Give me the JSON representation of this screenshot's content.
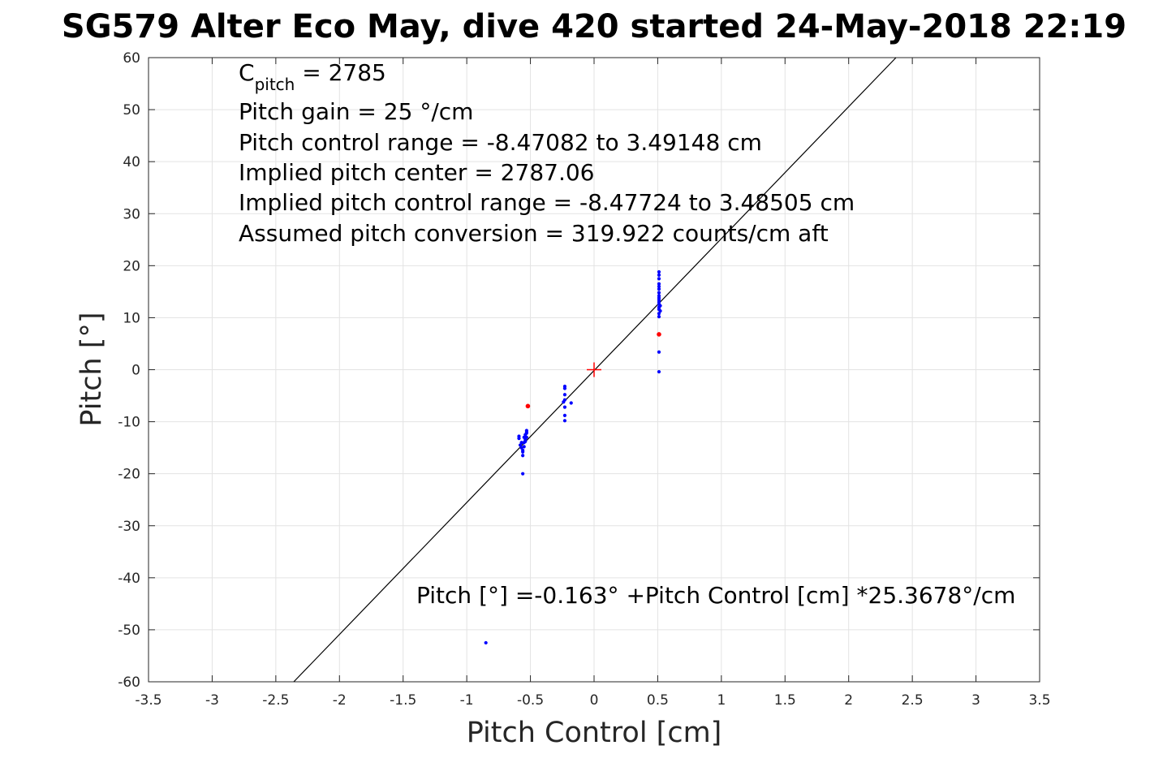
{
  "chart_data": {
    "type": "scatter",
    "title": "SG579 Alter Eco May, dive 420 started 24-May-2018 22:19",
    "xlabel": "Pitch Control [cm]",
    "ylabel": "Pitch [°]",
    "xlim": [
      -3.5,
      3.5
    ],
    "ylim": [
      -60,
      60
    ],
    "xticks": [
      -3.5,
      -3,
      -2.5,
      -2,
      -1.5,
      -1,
      -0.5,
      0,
      0.5,
      1,
      1.5,
      2,
      2.5,
      3,
      3.5
    ],
    "xtick_labels": [
      "-3.5",
      "-3",
      "-2.5",
      "-2",
      "-1.5",
      "-1",
      "-0.5",
      "0",
      "0.5",
      "1",
      "1.5",
      "2",
      "2.5",
      "3",
      "3.5"
    ],
    "yticks": [
      -60,
      -50,
      -40,
      -30,
      -20,
      -10,
      0,
      10,
      20,
      30,
      40,
      50,
      60
    ],
    "ytick_labels": [
      "-60",
      "-50",
      "-40",
      "-30",
      "-20",
      "-10",
      "0",
      "10",
      "20",
      "30",
      "40",
      "50",
      "60"
    ],
    "grid": true,
    "series": [
      {
        "color": "#0000ff",
        "marker": "point",
        "points": [
          [
            -0.85,
            -52.5
          ],
          [
            -0.56,
            -20
          ],
          [
            -0.56,
            -16.5
          ],
          [
            -0.56,
            -15.5
          ],
          [
            -0.57,
            -15
          ],
          [
            -0.58,
            -14.5
          ],
          [
            -0.55,
            -14
          ],
          [
            -0.57,
            -14
          ],
          [
            -0.54,
            -13.5
          ],
          [
            -0.59,
            -13.2
          ],
          [
            -0.55,
            -13
          ],
          [
            -0.53,
            -13
          ],
          [
            -0.59,
            -12.8
          ],
          [
            -0.54,
            -12.5
          ],
          [
            -0.53,
            -12.2
          ],
          [
            -0.53,
            -12
          ],
          [
            -0.53,
            -11.7
          ],
          [
            -0.56,
            -15.8
          ],
          [
            -0.55,
            -14.8
          ],
          [
            -0.54,
            -13.8
          ],
          [
            -0.23,
            -9.8
          ],
          [
            -0.23,
            -8.8
          ],
          [
            -0.23,
            -7.2
          ],
          [
            -0.24,
            -6.2
          ],
          [
            -0.23,
            -5.8
          ],
          [
            -0.18,
            -6.4
          ],
          [
            -0.23,
            -4.8
          ],
          [
            -0.23,
            -3.6
          ],
          [
            -0.23,
            -3.2
          ],
          [
            0.51,
            -0.4
          ],
          [
            0.51,
            3.4
          ],
          [
            0.51,
            10.2
          ],
          [
            0.51,
            10.8
          ],
          [
            0.52,
            11.3
          ],
          [
            0.51,
            11.6
          ],
          [
            0.51,
            12
          ],
          [
            0.52,
            12.3
          ],
          [
            0.51,
            12.6
          ],
          [
            0.51,
            13
          ],
          [
            0.51,
            13.4
          ],
          [
            0.51,
            13.8
          ],
          [
            0.51,
            14.2
          ],
          [
            0.51,
            14.8
          ],
          [
            0.51,
            15.5
          ],
          [
            0.51,
            16
          ],
          [
            0.51,
            16.5
          ],
          [
            0.51,
            17.5
          ],
          [
            0.51,
            18.2
          ],
          [
            0.51,
            18.8
          ]
        ]
      },
      {
        "color": "#ff0000",
        "marker": "dot",
        "points": [
          [
            -0.52,
            -7
          ],
          [
            0.51,
            6.8
          ]
        ]
      }
    ],
    "fit_line": {
      "intercept": -0.163,
      "slope": 25.3678,
      "color": "#000000"
    },
    "center_marker": {
      "x": 0,
      "y": 0,
      "color": "#ff0000",
      "marker": "+"
    },
    "annotations": {
      "c_pitch_symbol": "C",
      "c_pitch_subscript": "pitch",
      "c_pitch_value": " = 2785",
      "lines": [
        "Pitch gain = 25 °/cm",
        "Pitch control range = -8.47082 to 3.49148 cm",
        "Implied pitch center = 2787.06",
        "Implied pitch control range = -8.47724 to 3.48505 cm",
        "Assumed pitch conversion = 319.922 counts/cm aft"
      ],
      "fit_equation": "Pitch [°] =-0.163° +Pitch Control [cm] *25.3678°/cm"
    }
  }
}
